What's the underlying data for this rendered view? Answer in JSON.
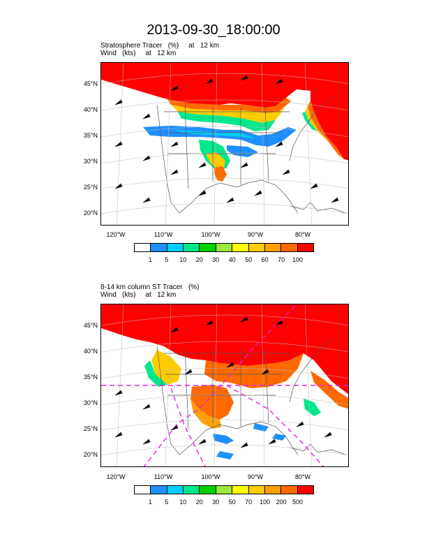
{
  "title": "2013-09-30_18:00:00",
  "panel1": {
    "line1": "Stratosphere Tracer   (%)     at   12 km",
    "line2": "Wind   (kts)     at   12 km",
    "lat_labels": [
      "45°N",
      "40°N",
      "35°N",
      "30°N",
      "25°N",
      "20°N"
    ],
    "lon_labels": [
      "120°W",
      "110°W",
      "100°W",
      "90°W",
      "80°W"
    ],
    "colorbar_labels": [
      "1",
      "5",
      "10",
      "20",
      "30",
      "40",
      "50",
      "60",
      "70",
      "100"
    ]
  },
  "panel2": {
    "line1": "8-14 km column ST Tracer   (%)",
    "line2": "Wind   (kts)     at   12 km",
    "lat_labels": [
      "45°N",
      "40°N",
      "35°N",
      "30°N",
      "25°N",
      "20°N"
    ],
    "lon_labels": [
      "120°W",
      "110°W",
      "100°W",
      "90°W",
      "80°W"
    ],
    "colorbar_labels": [
      "1",
      "5",
      "10",
      "20",
      "30",
      "50",
      "70",
      "100",
      "200",
      "500"
    ]
  },
  "colors": {
    "palette": [
      "#ffffff",
      "#1e90ff",
      "#00cfff",
      "#00e88c",
      "#00d000",
      "#9ae83c",
      "#ffff00",
      "#ffcc00",
      "#ffa000",
      "#ff6a00",
      "#ff0000"
    ],
    "border": "#555555",
    "guide_line": "#e020e0"
  }
}
